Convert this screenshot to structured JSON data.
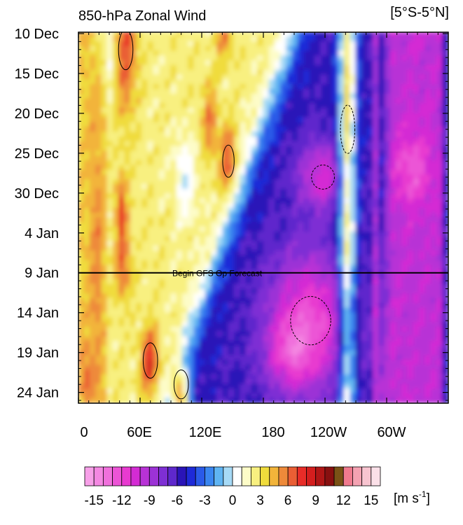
{
  "chart_data": {
    "type": "heatmap",
    "title": "850-hPa Zonal Wind",
    "region_label": "[5°S-5°N]",
    "x_ticks": [
      "0",
      "60E",
      "120E",
      "180",
      "120W",
      "60W"
    ],
    "x_tick_lon": [
      0,
      60,
      120,
      180,
      240,
      300
    ],
    "xlim": [
      0,
      360
    ],
    "y_ticks": [
      "10 Dec",
      "15 Dec",
      "20 Dec",
      "25 Dec",
      "30 Dec",
      "4 Jan",
      "9 Jan",
      "14 Jan",
      "19 Jan",
      "24 Jan"
    ],
    "y_tick_day": [
      0,
      5,
      10,
      15,
      20,
      25,
      30,
      35,
      40,
      45
    ],
    "ylim": [
      0,
      46
    ],
    "forecast_line_day": 30,
    "annotation": "Begin GFS Op Forecast",
    "colorbar": {
      "unit_label": "[m s",
      "unit_exp": "-1",
      "unit_close": "]",
      "levels": [
        -16,
        -15,
        -14,
        -13,
        -12,
        -11,
        -10,
        -9,
        -8,
        -7,
        -6,
        -5,
        -4,
        -3,
        -2,
        -1,
        0,
        1,
        2,
        3,
        4,
        5,
        6,
        7,
        8,
        9,
        10,
        11,
        12,
        13,
        14,
        15,
        16
      ],
      "tick_labels": [
        "-15",
        "-12",
        "-9",
        "-6",
        "-3",
        "0",
        "3",
        "6",
        "9",
        "12",
        "15"
      ],
      "tick_values": [
        -15,
        -12,
        -9,
        -6,
        -3,
        0,
        3,
        6,
        9,
        12,
        15
      ],
      "colors": [
        "#f7a0e8",
        "#f488e2",
        "#f070dc",
        "#ec54d6",
        "#e83ad0",
        "#d42bd4",
        "#b832d6",
        "#9c32d6",
        "#7e2fd4",
        "#5e28cc",
        "#2a14b8",
        "#1e2ad8",
        "#2a5ae8",
        "#3a86f0",
        "#5fb4f2",
        "#a6daf6",
        "#ffffff",
        "#fdfcc8",
        "#f8f080",
        "#f0dc3c",
        "#f2b43a",
        "#ee8a3a",
        "#ea5e34",
        "#e82c28",
        "#d41e1e",
        "#b01616",
        "#881010",
        "#7a5216",
        "#f07a8e",
        "#f4a2b2",
        "#f8c4d0",
        "#fbe0e8"
      ]
    }
  }
}
